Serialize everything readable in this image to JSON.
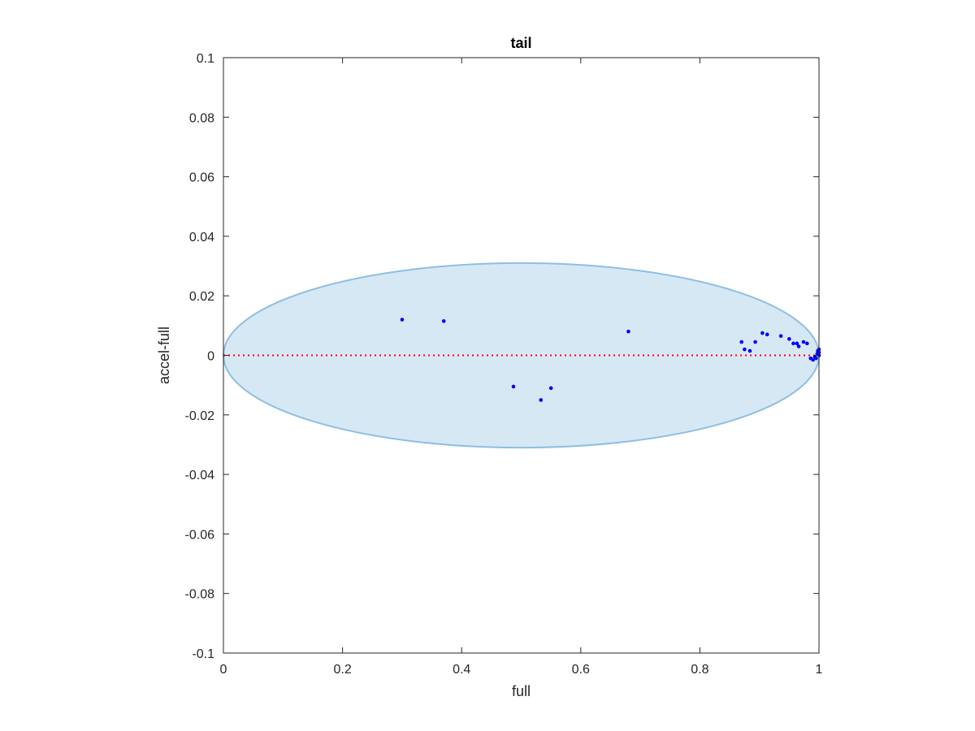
{
  "chart_data": {
    "type": "scatter",
    "title": "tail",
    "xlabel": "full",
    "ylabel": "accel-full",
    "xlim": [
      0,
      1
    ],
    "ylim": [
      -0.1,
      0.1
    ],
    "xticks": [
      0,
      0.2,
      0.4,
      0.6,
      0.8,
      1
    ],
    "xtick_labels": [
      "0",
      "0.2",
      "0.4",
      "0.6",
      "0.8",
      "1"
    ],
    "yticks": [
      0.1,
      0.08,
      0.06,
      0.04,
      0.02,
      0,
      -0.02,
      -0.04,
      -0.06,
      -0.08,
      -0.1
    ],
    "ytick_labels": [
      "0.1",
      "0.08",
      "0.06",
      "0.04",
      "0.02",
      "0",
      "-0.02",
      "-0.04",
      "-0.06",
      "-0.08",
      "-0.1"
    ],
    "grid": false,
    "ellipse": {
      "cx": 0.5,
      "cy": 0,
      "rx": 0.5,
      "ry": 0.031,
      "fill": "#d7e8f5",
      "stroke": "#8fbfe0"
    },
    "reference_line": {
      "y": 0,
      "x": [
        0,
        1
      ],
      "color": "#ff0000",
      "style": "dotted"
    },
    "series": [
      {
        "color": "#0000ff",
        "points": [
          [
            0.3,
            0.012
          ],
          [
            0.37,
            0.0115
          ],
          [
            0.68,
            0.008
          ],
          [
            0.487,
            -0.0105
          ],
          [
            0.55,
            -0.011
          ],
          [
            0.533,
            -0.015
          ],
          [
            0.87,
            0.0045
          ],
          [
            0.875,
            0.002
          ],
          [
            0.884,
            0.0015
          ],
          [
            0.893,
            0.0045
          ],
          [
            0.905,
            0.0075
          ],
          [
            0.913,
            0.007
          ],
          [
            0.936,
            0.0065
          ],
          [
            0.95,
            0.0055
          ],
          [
            0.957,
            0.004
          ],
          [
            0.963,
            0.004
          ],
          [
            0.966,
            0.003
          ],
          [
            0.974,
            0.0045
          ],
          [
            0.98,
            0.004
          ],
          [
            0.986,
            -0.001
          ],
          [
            0.99,
            -0.0015
          ],
          [
            0.993,
            -0.0005
          ],
          [
            0.995,
            -0.001
          ],
          [
            0.997,
            0.0005
          ],
          [
            0.998,
            0.0015
          ],
          [
            0.999,
            0.0005
          ],
          [
            1.0,
            0.001
          ],
          [
            1.0,
            0.002
          ],
          [
            1.0,
            0.0
          ]
        ]
      }
    ]
  }
}
